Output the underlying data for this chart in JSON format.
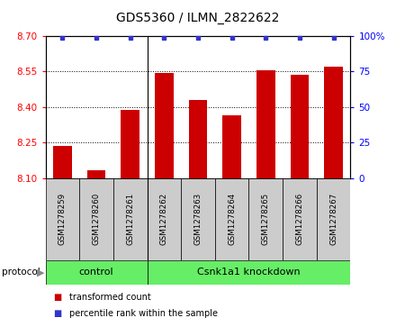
{
  "title": "GDS5360 / ILMN_2822622",
  "samples": [
    "GSM1278259",
    "GSM1278260",
    "GSM1278261",
    "GSM1278262",
    "GSM1278263",
    "GSM1278264",
    "GSM1278265",
    "GSM1278266",
    "GSM1278267"
  ],
  "bar_values": [
    8.235,
    8.135,
    8.39,
    8.545,
    8.43,
    8.365,
    8.555,
    8.535,
    8.57
  ],
  "bar_color": "#cc0000",
  "dot_color": "#3333cc",
  "ylim_left": [
    8.1,
    8.7
  ],
  "ylim_right": [
    0,
    100
  ],
  "yticks_left": [
    8.1,
    8.25,
    8.4,
    8.55,
    8.7
  ],
  "yticks_right": [
    0,
    25,
    50,
    75,
    100
  ],
  "ytick_labels_right": [
    "0",
    "25",
    "50",
    "75",
    "100%"
  ],
  "gridlines": [
    8.25,
    8.4,
    8.55
  ],
  "control_count": 3,
  "control_label": "control",
  "knockdown_label": "Csnk1a1 knockdown",
  "protocol_label": "protocol",
  "legend_bar_label": "transformed count",
  "legend_dot_label": "percentile rank within the sample",
  "bar_width": 0.55,
  "baseline": 8.1,
  "tick_area_color": "#cccccc",
  "group_area_color": "#66ee66",
  "bg_color": "#ffffff"
}
